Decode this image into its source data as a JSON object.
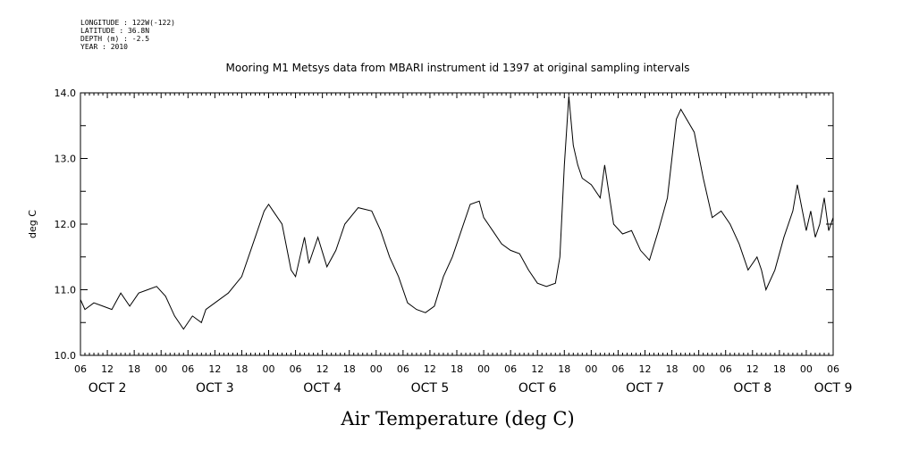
{
  "header": {
    "longitude": "LONGITUDE : 122W(-122)",
    "latitude": "LATITUDE : 36.8N",
    "depth": "DEPTH (m) : -2.5",
    "year": "YEAR : 2010"
  },
  "chart_data": {
    "type": "line",
    "title": "Mooring M1 Metsys data from MBARI instrument id 1397 at original sampling intervals",
    "xlabel": "Air Temperature (deg C)",
    "ylabel": "deg C",
    "ylim": [
      10.0,
      14.0
    ],
    "yticks": [
      "10.0",
      "11.0",
      "12.0",
      "13.0",
      "14.0"
    ],
    "xlim": [
      "2010-10-02T06:00",
      "2010-10-09T06:00"
    ],
    "x_hour_ticks": [
      "06",
      "12",
      "18",
      "00",
      "06",
      "12",
      "18",
      "00",
      "06",
      "12",
      "18",
      "00",
      "06",
      "12",
      "18",
      "00",
      "06",
      "12",
      "18",
      "00",
      "06",
      "12",
      "18",
      "00",
      "06",
      "12",
      "18",
      "00",
      "06"
    ],
    "x_day_labels": [
      "OCT 2",
      "OCT 3",
      "OCT 4",
      "OCT 5",
      "OCT 6",
      "OCT 7",
      "OCT 8",
      "OCT 9"
    ],
    "grid": false,
    "series": [
      {
        "x": [
          "2010-10-02T06:00",
          "2010-10-02T07:00",
          "2010-10-02T09:00",
          "2010-10-02T11:00",
          "2010-10-02T13:00",
          "2010-10-02T15:00",
          "2010-10-02T17:00",
          "2010-10-02T19:00",
          "2010-10-02T21:00",
          "2010-10-02T23:00",
          "2010-10-03T01:00",
          "2010-10-03T03:00",
          "2010-10-03T05:00",
          "2010-10-03T07:00",
          "2010-10-03T09:00",
          "2010-10-03T10:00",
          "2010-10-03T12:00",
          "2010-10-03T15:00",
          "2010-10-03T18:00",
          "2010-10-03T21:00",
          "2010-10-03T23:00",
          "2010-10-04T00:00",
          "2010-10-04T01:00",
          "2010-10-04T03:00",
          "2010-10-04T05:00",
          "2010-10-04T06:00",
          "2010-10-04T08:00",
          "2010-10-04T09:00",
          "2010-10-04T11:00",
          "2010-10-04T13:00",
          "2010-10-04T15:00",
          "2010-10-04T17:00",
          "2010-10-04T20:00",
          "2010-10-04T23:00",
          "2010-10-05T01:00",
          "2010-10-05T03:00",
          "2010-10-05T05:00",
          "2010-10-05T07:00",
          "2010-10-05T09:00",
          "2010-10-05T11:00",
          "2010-10-05T13:00",
          "2010-10-05T15:00",
          "2010-10-05T17:00",
          "2010-10-05T19:00",
          "2010-10-05T21:00",
          "2010-10-05T23:00",
          "2010-10-06T00:00",
          "2010-10-06T02:00",
          "2010-10-06T04:00",
          "2010-10-06T06:00",
          "2010-10-06T08:00",
          "2010-10-06T10:00",
          "2010-10-06T12:00",
          "2010-10-06T14:00",
          "2010-10-06T16:00",
          "2010-10-06T17:00",
          "2010-10-06T18:00",
          "2010-10-06T19:00",
          "2010-10-06T20:00",
          "2010-10-06T21:00",
          "2010-10-06T22:00",
          "2010-10-07T00:00",
          "2010-10-07T02:00",
          "2010-10-07T03:00",
          "2010-10-07T05:00",
          "2010-10-07T07:00",
          "2010-10-07T09:00",
          "2010-10-07T11:00",
          "2010-10-07T13:00",
          "2010-10-07T15:00",
          "2010-10-07T17:00",
          "2010-10-07T19:00",
          "2010-10-07T20:00",
          "2010-10-07T23:00",
          "2010-10-08T01:00",
          "2010-10-08T03:00",
          "2010-10-08T05:00",
          "2010-10-08T07:00",
          "2010-10-08T09:00",
          "2010-10-08T11:00",
          "2010-10-08T13:00",
          "2010-10-08T14:00",
          "2010-10-08T15:00",
          "2010-10-08T17:00",
          "2010-10-08T19:00",
          "2010-10-08T21:00",
          "2010-10-08T22:00",
          "2010-10-09T00:00",
          "2010-10-09T01:00",
          "2010-10-09T02:00",
          "2010-10-09T03:00",
          "2010-10-09T04:00",
          "2010-10-09T05:00",
          "2010-10-09T06:00"
        ],
        "values": [
          10.85,
          10.7,
          10.8,
          10.75,
          10.7,
          10.95,
          10.75,
          10.95,
          11.0,
          11.05,
          10.9,
          10.6,
          10.4,
          10.6,
          10.5,
          10.7,
          10.8,
          10.95,
          11.2,
          11.8,
          12.2,
          12.3,
          12.2,
          12.0,
          11.3,
          11.2,
          11.8,
          11.4,
          11.8,
          11.35,
          11.6,
          12.0,
          12.25,
          12.2,
          11.9,
          11.5,
          11.2,
          10.8,
          10.7,
          10.65,
          10.75,
          11.2,
          11.5,
          11.9,
          12.3,
          12.35,
          12.1,
          11.9,
          11.7,
          11.6,
          11.55,
          11.3,
          11.1,
          11.05,
          11.1,
          11.5,
          12.9,
          13.95,
          13.2,
          12.9,
          12.7,
          12.6,
          12.4,
          12.9,
          12.0,
          11.85,
          11.9,
          11.6,
          11.45,
          11.9,
          12.4,
          13.6,
          13.75,
          13.4,
          12.7,
          12.1,
          12.2,
          12.0,
          11.7,
          11.3,
          11.5,
          11.3,
          11.0,
          11.3,
          11.8,
          12.2,
          12.6,
          11.9,
          12.2,
          11.8,
          12.0,
          12.4,
          11.9,
          12.1
        ]
      }
    ]
  }
}
